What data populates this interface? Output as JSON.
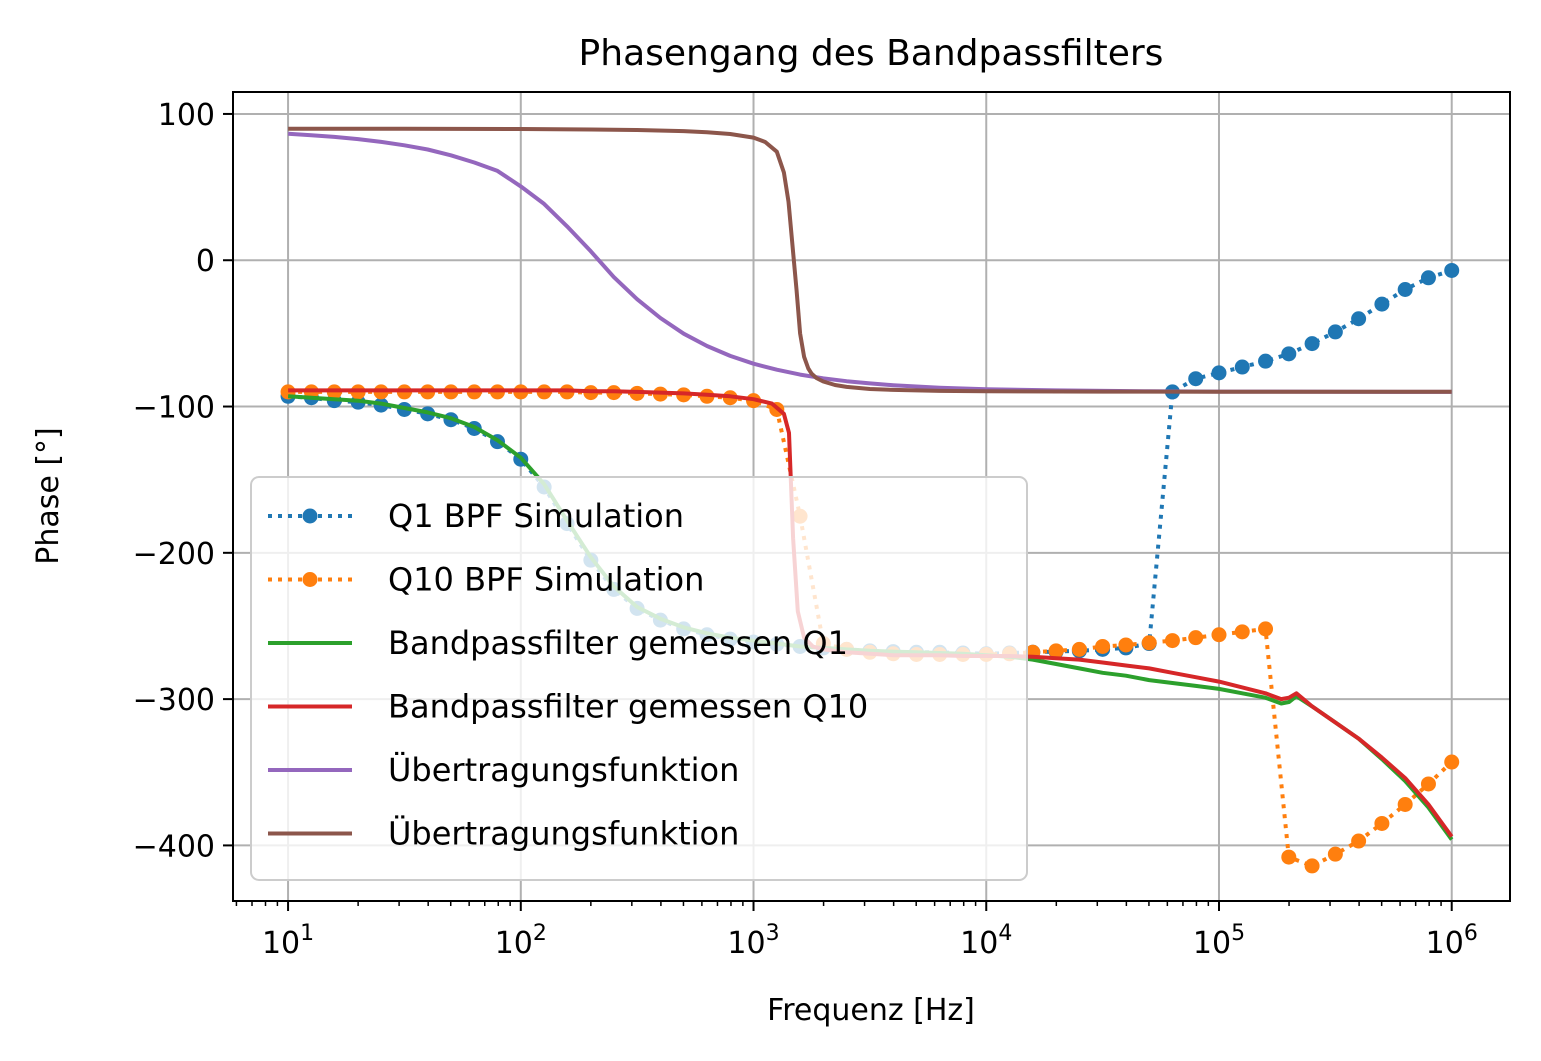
{
  "chart_data": {
    "type": "line",
    "title": "Phasengang des Bandpassfilters",
    "xlabel": "Frequenz [Hz]",
    "ylabel": "Phase [°]",
    "xscale": "log",
    "xlim": [
      5.8,
      1780000
    ],
    "ylim": [
      -438,
      115
    ],
    "x_ticks": [
      10,
      100,
      1000,
      10000,
      100000,
      1000000
    ],
    "x_tick_labels": [
      {
        "base": "10",
        "exp": "1"
      },
      {
        "base": "10",
        "exp": "2"
      },
      {
        "base": "10",
        "exp": "3"
      },
      {
        "base": "10",
        "exp": "4"
      },
      {
        "base": "10",
        "exp": "5"
      },
      {
        "base": "10",
        "exp": "6"
      }
    ],
    "y_ticks": [
      100,
      0,
      -100,
      -200,
      -300,
      -400
    ],
    "y_tick_labels": [
      "100",
      "0",
      "−100",
      "−200",
      "−300",
      "−400"
    ],
    "grid": true,
    "legend_position": "lower-left",
    "series": [
      {
        "name": "Q1 BPF Simulation",
        "color": "#1f77b4",
        "style": "dotted-markers",
        "x": [
          10,
          12.6,
          15.8,
          20,
          25.1,
          31.6,
          39.8,
          50.1,
          63.1,
          79.4,
          100,
          126,
          158,
          200,
          251,
          316,
          398,
          501,
          631,
          794,
          1000,
          1259,
          1585,
          1995,
          2512,
          3162,
          3981,
          5012,
          6310,
          7943,
          10000,
          12589,
          15849,
          19953,
          25119,
          31623,
          39811,
          50119,
          63096,
          79433,
          100000,
          125893,
          158489,
          199526,
          251189,
          316228,
          398107,
          501187,
          630957,
          794328,
          1000000
        ],
        "y": [
          -93,
          -94,
          -96,
          -97,
          -99,
          -102,
          -105,
          -109,
          -115,
          -124,
          -136,
          -155,
          -180,
          -205,
          -225,
          -238,
          -246,
          -252,
          -256,
          -259,
          -261,
          -262.5,
          -264,
          -265,
          -266,
          -267,
          -267.5,
          -268,
          -268,
          -268.5,
          -269,
          -268.5,
          -268,
          -267.5,
          -267,
          -266,
          -265,
          -262,
          -90,
          -81,
          -77,
          -73,
          -69,
          -64,
          -57,
          -49,
          -40,
          -30,
          -20,
          -12,
          -7
        ]
      },
      {
        "name": "Q10 BPF Simulation",
        "color": "#ff7f0e",
        "style": "dotted-markers",
        "x": [
          10,
          12.6,
          15.8,
          20,
          25.1,
          31.6,
          39.8,
          50.1,
          63.1,
          79.4,
          100,
          126,
          158,
          200,
          251,
          316,
          398,
          501,
          631,
          794,
          1000,
          1259,
          1585,
          1995,
          2512,
          3162,
          3981,
          5012,
          6310,
          7943,
          10000,
          12589,
          15849,
          19953,
          25119,
          31623,
          39811,
          50119,
          63096,
          79433,
          100000,
          125893,
          158489,
          199526,
          251189,
          316228,
          398107,
          501187,
          630957,
          794328,
          1000000
        ],
        "y": [
          -90,
          -90,
          -90,
          -90,
          -90,
          -90,
          -90,
          -90,
          -90,
          -90,
          -90,
          -90,
          -90,
          -90.5,
          -90.5,
          -91,
          -91.5,
          -92,
          -93,
          -94,
          -96,
          -102,
          -175,
          -262,
          -266,
          -268,
          -269,
          -269.5,
          -269.5,
          -269.5,
          -269.5,
          -269,
          -268,
          -267,
          -266,
          -264,
          -263,
          -261.5,
          -260,
          -258,
          -256,
          -254,
          -252,
          -408,
          -414,
          -406,
          -397,
          -385,
          -372,
          -358,
          -343
        ]
      },
      {
        "name": "Bandpassfilter gemessen Q1",
        "color": "#2ca02c",
        "style": "solid",
        "x": [
          10,
          12.6,
          15.8,
          20,
          25.1,
          31.6,
          39.8,
          50.1,
          63.1,
          79.4,
          100,
          126,
          158,
          200,
          251,
          316,
          398,
          501,
          631,
          794,
          1000,
          1259,
          1585,
          1995,
          2512,
          3162,
          3981,
          5012,
          6310,
          7943,
          10000,
          12589,
          15849,
          19953,
          25119,
          31623,
          39811,
          50119,
          63096,
          79433,
          100000,
          125893,
          158489,
          185000,
          200000,
          215000,
          251189,
          316228,
          398107,
          501187,
          630957,
          794328,
          1000000
        ],
        "y": [
          -93,
          -94,
          -95,
          -96,
          -98,
          -101,
          -104,
          -108,
          -114,
          -123,
          -135,
          -153,
          -178,
          -203,
          -223,
          -237,
          -245,
          -251,
          -255,
          -258,
          -260,
          -262,
          -264,
          -265,
          -266,
          -267,
          -267.5,
          -268,
          -268.5,
          -269,
          -270,
          -271,
          -273,
          -276,
          -279,
          -282,
          -284,
          -287,
          -289,
          -291,
          -293,
          -296,
          -299,
          -303,
          -302,
          -298,
          -305,
          -316,
          -327,
          -341,
          -356,
          -374,
          -396
        ]
      },
      {
        "name": "Bandpassfilter gemessen Q10",
        "color": "#d62728",
        "style": "solid",
        "x": [
          10,
          12.6,
          15.8,
          20,
          25.1,
          31.6,
          39.8,
          50.1,
          63.1,
          79.4,
          100,
          126,
          158,
          200,
          251,
          316,
          398,
          501,
          631,
          794,
          1000,
          1200,
          1350,
          1420,
          1480,
          1550,
          1650,
          1800,
          2000,
          2512,
          3162,
          3981,
          5012,
          6310,
          7943,
          10000,
          12589,
          15849,
          19953,
          25119,
          31623,
          39811,
          50119,
          63096,
          79433,
          100000,
          125893,
          158489,
          185000,
          200000,
          215000,
          251189,
          316228,
          398107,
          501187,
          630957,
          794328,
          1000000
        ],
        "y": [
          -89,
          -89,
          -89,
          -89,
          -89,
          -89,
          -89,
          -89,
          -89,
          -89,
          -89,
          -89,
          -89,
          -89.5,
          -89.5,
          -90,
          -90.5,
          -91,
          -92,
          -93,
          -95,
          -98,
          -105,
          -118,
          -190,
          -240,
          -258,
          -264,
          -266,
          -268,
          -269,
          -270,
          -270,
          -270,
          -270.5,
          -270.5,
          -270.5,
          -271,
          -272,
          -273,
          -275,
          -277,
          -279,
          -282,
          -285,
          -288,
          -292,
          -296,
          -300,
          -299,
          -296,
          -305,
          -316,
          -327,
          -340,
          -354,
          -372,
          -394
        ]
      },
      {
        "name": "Übertragungsfunktion",
        "color": "#9467bd",
        "style": "solid",
        "x": [
          10,
          12.6,
          15.8,
          20,
          25.1,
          31.6,
          39.8,
          50.1,
          63.1,
          79.4,
          100,
          126,
          158,
          200,
          251,
          316,
          398,
          501,
          631,
          794,
          1000,
          1259,
          1585,
          1995,
          2512,
          3162,
          3981,
          5012,
          6310,
          7943,
          10000,
          19953,
          50119,
          100000,
          1000000
        ],
        "y": [
          86.4,
          85.5,
          84.3,
          82.8,
          80.9,
          78.6,
          75.7,
          71.7,
          66.8,
          61.1,
          50.5,
          38.5,
          23.2,
          6.1,
          -11.5,
          -26.6,
          -39.5,
          -50.2,
          -58.6,
          -65.4,
          -70.7,
          -74.8,
          -78.2,
          -80.7,
          -82.7,
          -84.2,
          -85.4,
          -86.3,
          -87.1,
          -87.7,
          -88.2,
          -89.0,
          -89.6,
          -89.8,
          -90.0
        ]
      },
      {
        "name": "Übertragungsfunktion",
        "color": "#8c564b",
        "style": "solid",
        "x": [
          10,
          31.6,
          100,
          200,
          316,
          501,
          631,
          794,
          1000,
          1122,
          1259,
          1350,
          1413,
          1470,
          1530,
          1585,
          1650,
          1720,
          1778,
          1862,
          1995,
          2239,
          2512,
          3162,
          3981,
          5012,
          6310,
          10000,
          31623,
          100000,
          1000000
        ],
        "y": [
          89.9,
          89.9,
          89.7,
          89.4,
          89.0,
          88.3,
          87.5,
          86.3,
          83.8,
          80.8,
          74.2,
          60.0,
          40.0,
          10.0,
          -20.0,
          -50.0,
          -66.0,
          -74.0,
          -77.6,
          -80.5,
          -82.9,
          -85.3,
          -86.6,
          -88.0,
          -88.6,
          -89.0,
          -89.3,
          -89.6,
          -89.8,
          -89.9,
          -89.9
        ]
      }
    ]
  }
}
